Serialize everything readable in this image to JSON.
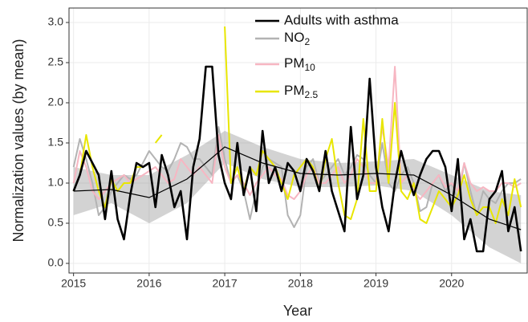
{
  "chart_data": {
    "type": "line",
    "xlabel": "Year",
    "ylabel": "Normalization values (by mean)",
    "xlim": [
      2014.94,
      2021.0
    ],
    "ylim": [
      -0.12,
      3.18
    ],
    "xticks": [
      2015,
      2016,
      2017,
      2018,
      2019,
      2020
    ],
    "yticks": [
      {
        "value": 0,
        "label": "0.0"
      },
      {
        "value": 0.5,
        "label": "0.5"
      },
      {
        "value": 1,
        "label": "1.0"
      },
      {
        "value": 1.5,
        "label": "1.5"
      },
      {
        "value": 2,
        "label": "2.0"
      },
      {
        "value": 2.5,
        "label": "2.5"
      },
      {
        "value": 3,
        "label": "3.0"
      }
    ],
    "grid": true,
    "legend": "top-right",
    "x": [
      2015,
      2015.083,
      2015.167,
      2015.25,
      2015.333,
      2015.417,
      2015.5,
      2015.583,
      2015.667,
      2015.75,
      2015.833,
      2015.917,
      2016,
      2016.083,
      2016.167,
      2016.25,
      2016.333,
      2016.417,
      2016.5,
      2016.583,
      2016.667,
      2016.75,
      2016.833,
      2016.917,
      2017,
      2017.083,
      2017.167,
      2017.25,
      2017.333,
      2017.417,
      2017.5,
      2017.583,
      2017.667,
      2017.75,
      2017.833,
      2017.917,
      2018,
      2018.083,
      2018.167,
      2018.25,
      2018.333,
      2018.417,
      2018.5,
      2018.583,
      2018.667,
      2018.75,
      2018.833,
      2018.917,
      2019,
      2019.083,
      2019.167,
      2019.25,
      2019.333,
      2019.417,
      2019.5,
      2019.583,
      2019.667,
      2019.75,
      2019.833,
      2019.917,
      2020,
      2020.083,
      2020.167,
      2020.25,
      2020.333,
      2020.417,
      2020.5,
      2020.583,
      2020.667,
      2020.75,
      2020.833,
      2020.917
    ],
    "series": [
      {
        "name": "Adults with asthma",
        "color": "#000000",
        "values": [
          0.9,
          1.1,
          1.4,
          1.25,
          1.1,
          0.55,
          1.15,
          0.55,
          0.3,
          0.85,
          1.25,
          1.2,
          1.25,
          0.7,
          1.35,
          1.1,
          0.7,
          0.9,
          0.3,
          1.2,
          1.55,
          2.45,
          2.45,
          1.35,
          1.0,
          0.8,
          1.5,
          0.85,
          1.2,
          0.65,
          1.65,
          1.0,
          1.2,
          0.9,
          1.25,
          1.15,
          0.9,
          1.3,
          1.15,
          0.9,
          1.4,
          0.9,
          0.65,
          0.4,
          1.7,
          0.8,
          1.1,
          2.3,
          1.2,
          0.7,
          0.4,
          1.0,
          1.4,
          1.1,
          0.85,
          1.1,
          1.3,
          1.4,
          1.4,
          1.2,
          0.65,
          1.3,
          0.3,
          0.55,
          0.15,
          0.15,
          0.8,
          0.9,
          1.15,
          0.4,
          0.7,
          0.15
        ],
        "smooth_x": [
          2015,
          2015.5,
          2016,
          2016.5,
          2017,
          2017.5,
          2018,
          2018.5,
          2019,
          2019.5,
          2020,
          2020.5,
          2020.917
        ],
        "smooth": [
          0.9,
          0.92,
          0.82,
          1.05,
          1.45,
          1.25,
          1.12,
          1.1,
          1.12,
          1.1,
          0.85,
          0.55,
          0.42
        ],
        "smooth_low": [
          0.6,
          0.75,
          0.5,
          0.75,
          1.25,
          1.05,
          0.95,
          0.95,
          0.97,
          0.9,
          0.6,
          0.2,
          0.0
        ],
        "smooth_high": [
          1.2,
          1.1,
          1.1,
          1.35,
          1.65,
          1.45,
          1.3,
          1.25,
          1.27,
          1.3,
          1.1,
          0.9,
          0.85
        ]
      },
      {
        "name": "NO2",
        "color": "#b3b3b3",
        "values": [
          1.2,
          1.55,
          1.3,
          1.0,
          0.6,
          0.7,
          0.9,
          1.0,
          1.1,
          1.05,
          1.1,
          1.25,
          1.4,
          1.3,
          1.2,
          1.15,
          1.3,
          1.5,
          1.45,
          1.3,
          1.3,
          1.2,
          1.1,
          1.7,
          1.3,
          1.0,
          1.1,
          0.9,
          0.55,
          0.9,
          1.2,
          1.3,
          1.25,
          1.2,
          0.6,
          0.45,
          0.6,
          1.2,
          1.3,
          1.0,
          1.1,
          1.2,
          1.3,
          1.1,
          1.2,
          1.35,
          1.3,
          1.1,
          1.0,
          1.5,
          1.0,
          0.9,
          1.1,
          1.2,
          1.0,
          0.65,
          0.7,
          1.0,
          1.1,
          0.9,
          1.0,
          0.8,
          1.25,
          0.9,
          0.6,
          0.9,
          0.8,
          0.75,
          0.9,
          1.0,
          1.0,
          1.05
        ]
      },
      {
        "name": "PM10",
        "color": "#f7b6c2",
        "values": [
          1.0,
          1.4,
          1.2,
          0.9,
          0.8,
          0.9,
          1.0,
          1.05,
          1.1,
          1.0,
          1.05,
          1.1,
          1.15,
          1.2,
          1.1,
          1.0,
          1.05,
          1.3,
          1.2,
          1.1,
          1.2,
          1.1,
          1.0,
          1.6,
          1.2,
          1.0,
          1.1,
          1.0,
          0.85,
          1.0,
          1.1,
          1.2,
          1.1,
          1.05,
          0.85,
          0.8,
          0.9,
          1.1,
          1.2,
          1.0,
          1.0,
          1.1,
          1.2,
          1.0,
          1.1,
          1.3,
          1.2,
          1.0,
          1.0,
          1.7,
          1.2,
          2.45,
          1.0,
          1.1,
          0.9,
          0.8,
          0.9,
          1.0,
          1.1,
          0.95,
          1.0,
          0.9,
          1.25,
          1.0,
          0.9,
          0.95,
          0.9,
          0.9,
          1.0,
          1.0,
          0.95,
          1.0
        ]
      },
      {
        "name": "PM2.5",
        "color": "#e8e600",
        "values": [
          0.9,
          1.1,
          1.6,
          1.2,
          0.9,
          0.7,
          1.05,
          0.9,
          1.0,
          1.0,
          1.2,
          1.2,
          null,
          1.5,
          1.6,
          null,
          null,
          null,
          null,
          null,
          null,
          null,
          null,
          null,
          2.95,
          1.0,
          1.2,
          0.9,
          1.2,
          1.1,
          1.4,
          1.3,
          1.2,
          1.0,
          0.8,
          1.1,
          1.2,
          1.3,
          1.2,
          0.9,
          1.3,
          1.55,
          1.0,
          0.6,
          0.55,
          0.8,
          1.8,
          0.9,
          0.9,
          1.8,
          1.0,
          2.0,
          0.9,
          0.8,
          1.0,
          0.55,
          0.5,
          0.7,
          0.9,
          0.8,
          0.7,
          0.85,
          1.1,
          0.8,
          0.6,
          0.7,
          0.7,
          0.5,
          0.8,
          0.6,
          1.05,
          0.7
        ]
      }
    ]
  }
}
